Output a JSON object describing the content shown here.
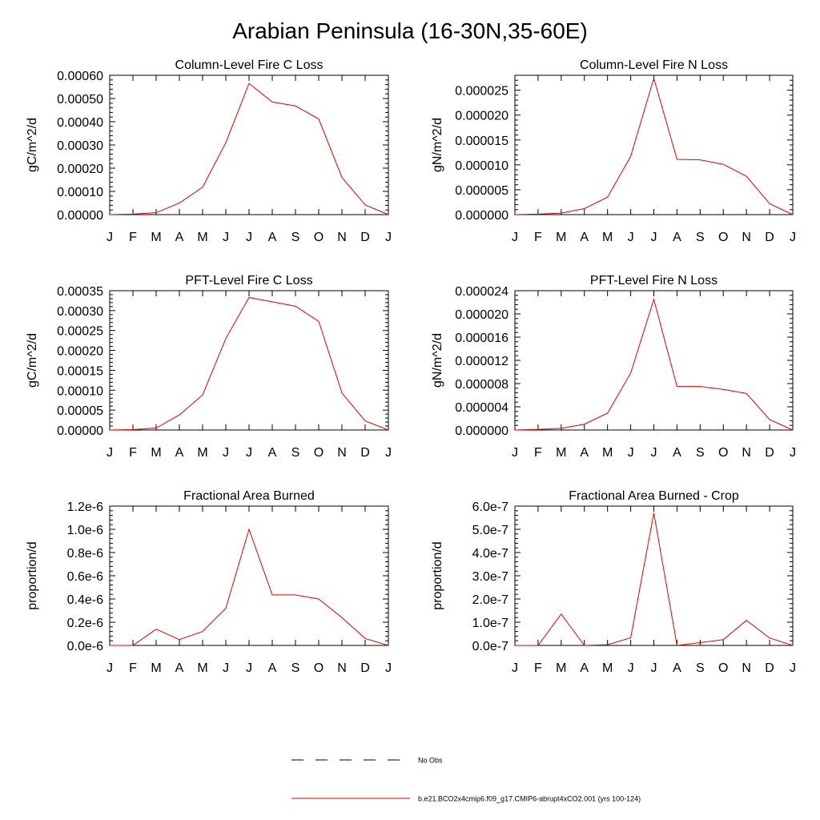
{
  "page_title": "Arabian Peninsula (16-30N,35-60E)",
  "colors": {
    "model_line": "#dd0000",
    "obs_line": "#000000",
    "axis": "#000000"
  },
  "legend": {
    "entries": [
      {
        "label": "No Obs",
        "style": "dashed",
        "color": "#000000"
      },
      {
        "label": "b.e21.BCO2x4cmip6.f09_g17.CMIP6-abrupt4xCO2.001 (yrs 100-124)",
        "style": "solid",
        "color": "#dd0000"
      }
    ]
  },
  "chart_data": [
    {
      "type": "line",
      "title": "Column-Level Fire C Loss",
      "xlabel": "",
      "ylabel": "gC/m^2/d",
      "categories": [
        "J",
        "F",
        "M",
        "A",
        "M",
        "J",
        "J",
        "A",
        "S",
        "O",
        "N",
        "D",
        "J"
      ],
      "ylim": [
        0,
        0.0006
      ],
      "yticks": [
        0,
        0.0001,
        0.0002,
        0.0003,
        0.0004,
        0.0005,
        0.0006
      ],
      "ytick_labels": [
        "0.00000",
        "0.00010",
        "0.00020",
        "0.00030",
        "0.00040",
        "0.00050",
        "0.00060"
      ],
      "series": [
        {
          "name": "b.e21.BCO2x4cmip6.f09_g17.CMIP6-abrupt4xCO2.001 (yrs 100-124)",
          "values": [
            0.0,
            2e-06,
            8e-06,
            5e-05,
            0.000118,
            0.00031,
            0.000565,
            0.000485,
            0.000468,
            0.000412,
            0.00016,
            4.2e-05,
            0.0
          ]
        }
      ]
    },
    {
      "type": "line",
      "title": "Column-Level Fire N Loss",
      "xlabel": "",
      "ylabel": "gN/m^2/d",
      "categories": [
        "J",
        "F",
        "M",
        "A",
        "M",
        "J",
        "J",
        "A",
        "S",
        "O",
        "N",
        "D",
        "J"
      ],
      "ylim": [
        0,
        2.8e-05
      ],
      "yticks": [
        0,
        5e-06,
        1e-05,
        1.5e-05,
        2e-05,
        2.5e-05
      ],
      "ytick_labels": [
        "0.000000",
        "0.000005",
        "0.000010",
        "0.000015",
        "0.000020",
        "0.000025"
      ],
      "series": [
        {
          "name": "b.e21.BCO2x4cmip6.f09_g17.CMIP6-abrupt4xCO2.001 (yrs 100-124)",
          "values": [
            0.0,
            1e-07,
            3e-07,
            1.2e-06,
            3.5e-06,
            1.17e-05,
            2.74e-05,
            1.11e-05,
            1.1e-05,
            1.01e-05,
            7.7e-06,
            2.2e-06,
            0.0
          ]
        }
      ]
    },
    {
      "type": "line",
      "title": "PFT-Level Fire C Loss",
      "xlabel": "",
      "ylabel": "gC/m^2/d",
      "categories": [
        "J",
        "F",
        "M",
        "A",
        "M",
        "J",
        "J",
        "A",
        "S",
        "O",
        "N",
        "D",
        "J"
      ],
      "ylim": [
        0,
        0.00035
      ],
      "yticks": [
        0,
        5e-05,
        0.0001,
        0.00015,
        0.0002,
        0.00025,
        0.0003,
        0.00035
      ],
      "ytick_labels": [
        "0.00000",
        "0.00005",
        "0.00010",
        "0.00015",
        "0.00020",
        "0.00025",
        "0.00030",
        "0.00035"
      ],
      "series": [
        {
          "name": "b.e21.BCO2x4cmip6.f09_g17.CMIP6-abrupt4xCO2.001 (yrs 100-124)",
          "values": [
            0.0,
            1e-06,
            5e-06,
            3.8e-05,
            8.8e-05,
            0.00023,
            0.000333,
            0.000322,
            0.000311,
            0.000273,
            9.3e-05,
            2.3e-05,
            0.0
          ]
        }
      ]
    },
    {
      "type": "line",
      "title": "PFT-Level Fire N Loss",
      "xlabel": "",
      "ylabel": "gN/m^2/d",
      "categories": [
        "J",
        "F",
        "M",
        "A",
        "M",
        "J",
        "J",
        "A",
        "S",
        "O",
        "N",
        "D",
        "J"
      ],
      "ylim": [
        0,
        2.4e-05
      ],
      "yticks": [
        0,
        4e-06,
        8e-06,
        1.2e-05,
        1.6e-05,
        2e-05,
        2.4e-05
      ],
      "ytick_labels": [
        "0.000000",
        "0.000004",
        "0.000008",
        "0.000012",
        "0.000016",
        "0.000020",
        "0.000024"
      ],
      "series": [
        {
          "name": "b.e21.BCO2x4cmip6.f09_g17.CMIP6-abrupt4xCO2.001 (yrs 100-124)",
          "values": [
            0.0,
            1e-07,
            3e-07,
            1e-06,
            2.9e-06,
            9.8e-06,
            2.25e-05,
            7.5e-06,
            7.5e-06,
            7e-06,
            6.3e-06,
            1.8e-06,
            0.0
          ]
        }
      ]
    },
    {
      "type": "line",
      "title": "Fractional Area Burned",
      "xlabel": "",
      "ylabel": "proportion/d",
      "categories": [
        "J",
        "F",
        "M",
        "A",
        "M",
        "J",
        "J",
        "A",
        "S",
        "O",
        "N",
        "D",
        "J"
      ],
      "ylim": [
        0,
        1.2e-06
      ],
      "yticks": [
        0,
        2e-07,
        4e-07,
        6e-07,
        8e-07,
        1e-06,
        1.2e-06
      ],
      "ytick_labels": [
        "0.0e-6",
        "0.2e-6",
        "0.4e-6",
        "0.6e-6",
        "0.8e-6",
        "1.0e-6",
        "1.2e-6"
      ],
      "series": [
        {
          "name": "b.e21.BCO2x4cmip6.f09_g17.CMIP6-abrupt4xCO2.001 (yrs 100-124)",
          "values": [
            0.0,
            0.0,
            1.4e-07,
            5e-08,
            1.2e-07,
            3.2e-07,
            1e-06,
            4.35e-07,
            4.35e-07,
            4e-07,
            2.4e-07,
            6e-08,
            0.0
          ]
        }
      ]
    },
    {
      "type": "line",
      "title": "Fractional Area Burned - Crop",
      "xlabel": "",
      "ylabel": "proportion/d",
      "categories": [
        "J",
        "F",
        "M",
        "A",
        "M",
        "J",
        "J",
        "A",
        "S",
        "O",
        "N",
        "D",
        "J"
      ],
      "ylim": [
        0,
        6e-07
      ],
      "yticks": [
        0,
        1e-07,
        2e-07,
        3e-07,
        4e-07,
        5e-07,
        6e-07
      ],
      "ytick_labels": [
        "0.0e-7",
        "1.0e-7",
        "2.0e-7",
        "3.0e-7",
        "4.0e-7",
        "5.0e-7",
        "6.0e-7"
      ],
      "series": [
        {
          "name": "b.e21.BCO2x4cmip6.f09_g17.CMIP6-abrupt4xCO2.001 (yrs 100-124)",
          "values": [
            0.0,
            0.0,
            1.35e-07,
            0.0,
            3e-09,
            3.3e-08,
            5.7e-07,
            0.0,
            1.2e-08,
            2.5e-08,
            1.08e-07,
            3.2e-08,
            0.0
          ]
        }
      ]
    }
  ]
}
